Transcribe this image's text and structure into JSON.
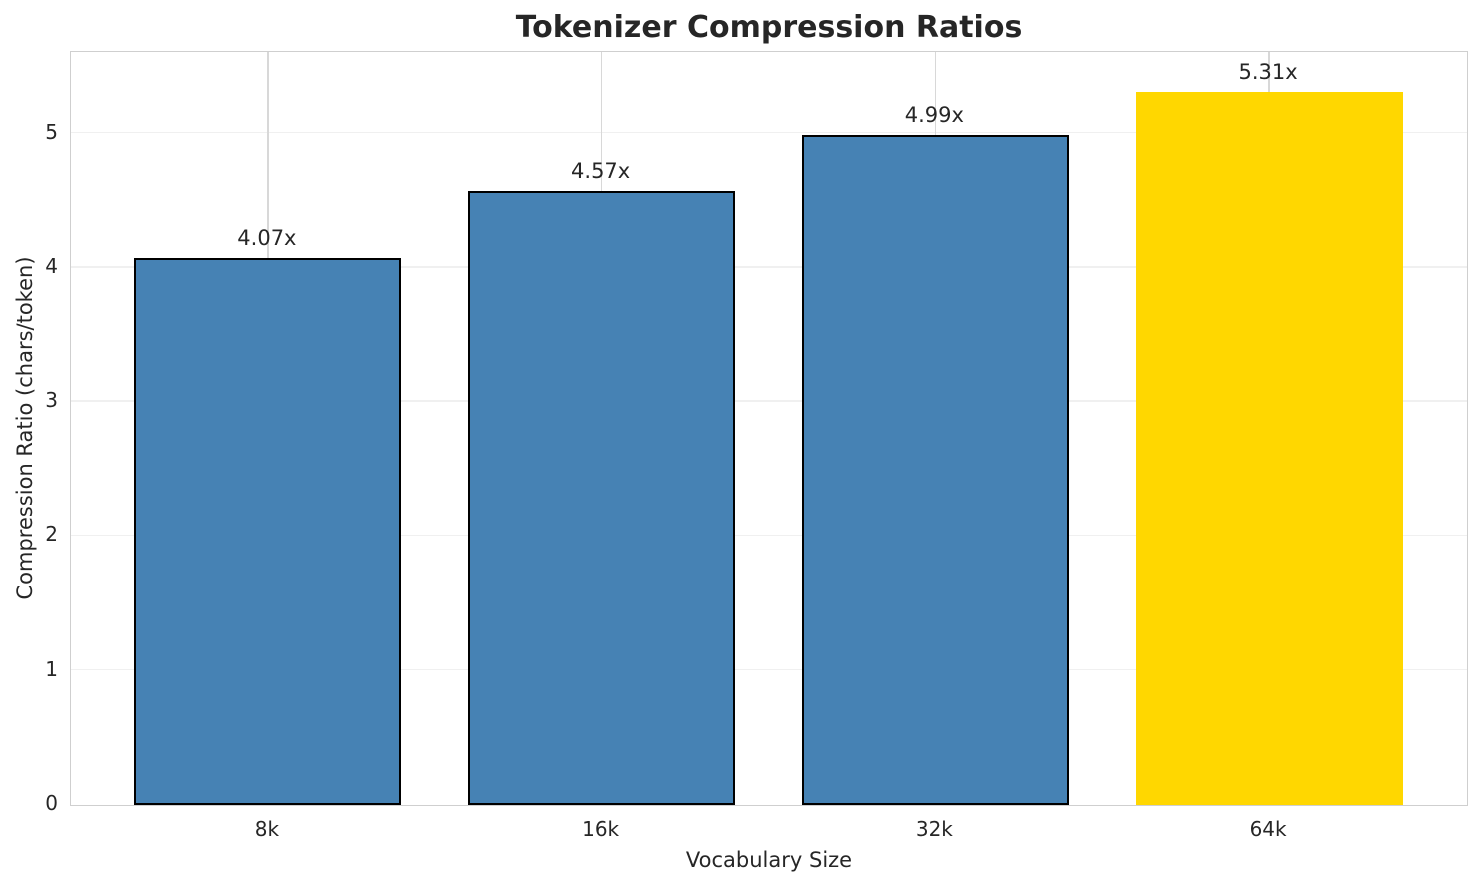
{
  "chart_data": {
    "type": "bar",
    "title": "Tokenizer Compression Ratios",
    "xlabel": "Vocabulary Size",
    "ylabel": "Compression Ratio (chars/token)",
    "categories": [
      "8k",
      "16k",
      "32k",
      "64k"
    ],
    "values": [
      4.07,
      4.57,
      4.99,
      5.31
    ],
    "bar_labels": [
      "4.07x",
      "4.57x",
      "4.99x",
      "5.31x"
    ],
    "yticks": [
      0,
      1,
      2,
      3,
      4,
      5
    ],
    "ylim": [
      0,
      5.6
    ],
    "xlim": [
      -0.59,
      3.59
    ],
    "bar_width_fraction": 0.8,
    "grid": true,
    "legend_position": "none",
    "bar_colors": [
      "#4682b4",
      "#4682b4",
      "#4682b4",
      "#ffd700"
    ],
    "bar_edge_colors": [
      "#000000",
      "#000000",
      "#000000",
      "none"
    ],
    "highlighted_category": "64k",
    "colors": {
      "spine": "#cfcfcf",
      "h_grid": "#f0f0f0",
      "v_grid": "#d8d8d8",
      "text": "#262626",
      "background": "#ffffff"
    }
  }
}
